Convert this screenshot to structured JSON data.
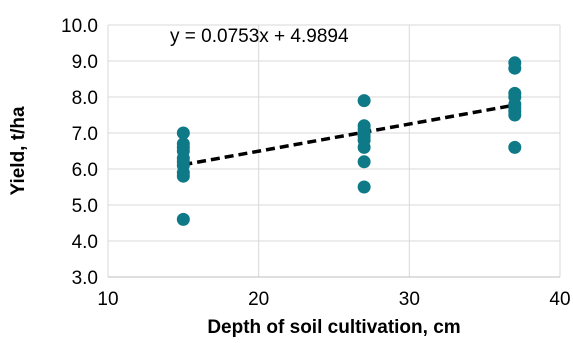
{
  "chart_data": {
    "type": "scatter",
    "xlabel": "Depth of soil cultivation, cm",
    "ylabel": "Yield, t/ha",
    "xlim": [
      10,
      40
    ],
    "ylim": [
      3.0,
      10.0
    ],
    "x_ticks": [
      "10",
      "20",
      "30",
      "40"
    ],
    "y_ticks": [
      "3.0",
      "4.0",
      "5.0",
      "6.0",
      "7.0",
      "8.0",
      "9.0",
      "10.0"
    ],
    "grid": true,
    "legend": "none",
    "series": [
      {
        "color": "#0e7a87",
        "points": [
          [
            15,
            7.0
          ],
          [
            15,
            6.7
          ],
          [
            15,
            6.6
          ],
          [
            15,
            6.5
          ],
          [
            15,
            6.3
          ],
          [
            15,
            6.2
          ],
          [
            15,
            6.1
          ],
          [
            15,
            5.9
          ],
          [
            15,
            5.8
          ],
          [
            15,
            4.6
          ],
          [
            27,
            7.9
          ],
          [
            27,
            7.2
          ],
          [
            27,
            7.1
          ],
          [
            27,
            7.0
          ],
          [
            27,
            6.9
          ],
          [
            27,
            6.8
          ],
          [
            27,
            6.6
          ],
          [
            27,
            6.2
          ],
          [
            27,
            5.5
          ],
          [
            37,
            8.95
          ],
          [
            37,
            8.8
          ],
          [
            37,
            8.1
          ],
          [
            37,
            8.0
          ],
          [
            37,
            7.8
          ],
          [
            37,
            7.7
          ],
          [
            37,
            7.6
          ],
          [
            37,
            7.5
          ],
          [
            37,
            6.6
          ]
        ]
      }
    ],
    "trendline": {
      "type": "linear",
      "slope": 0.0753,
      "intercept": 4.9894,
      "x_range": [
        15,
        37
      ],
      "color": "#000000",
      "equation_label": "y = 0.0753x + 4.9894"
    }
  }
}
